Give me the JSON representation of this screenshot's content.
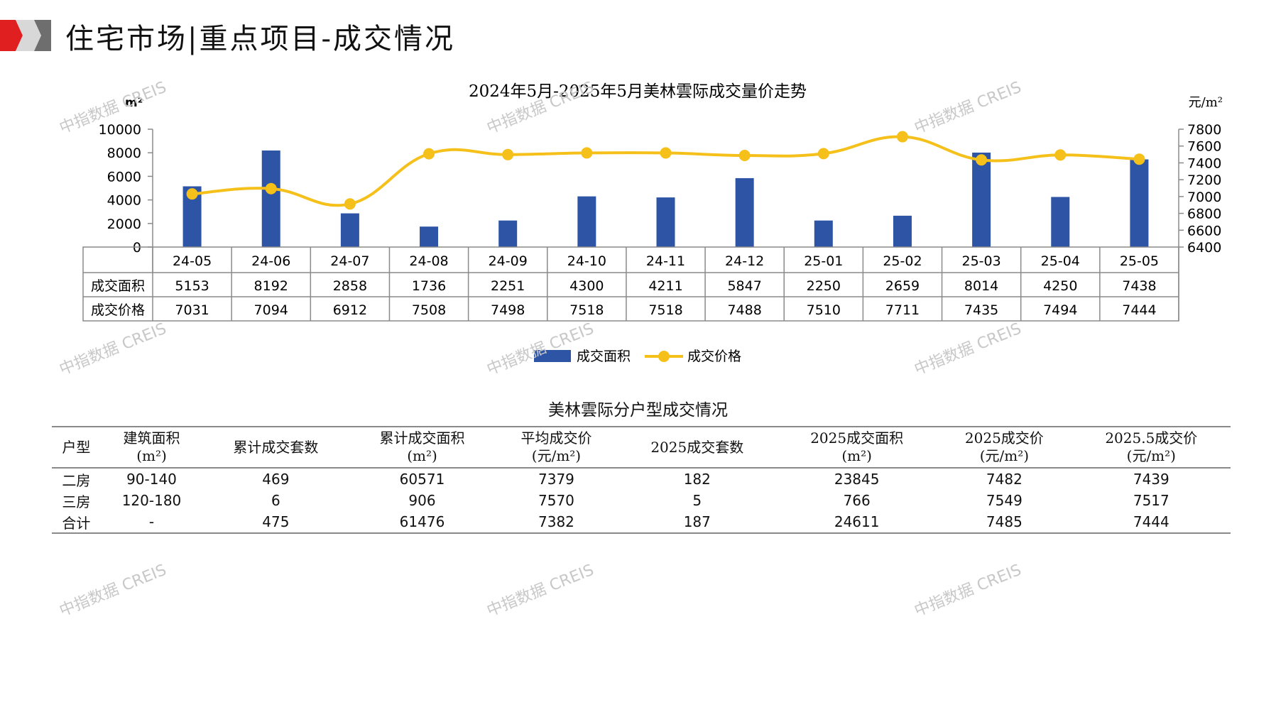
{
  "header": {
    "title": "住宅市场|重点项目-成交情况"
  },
  "watermark": "中指数据 CREIS",
  "chart_data": {
    "type": "bar",
    "title": "2024年5月-2025年5月美林雲际成交量价走势",
    "y_left_unit": "m²",
    "y_right_unit": "元/m²",
    "ylim_left": [
      0,
      10000
    ],
    "yticks_left": [
      0,
      2000,
      4000,
      6000,
      8000,
      10000
    ],
    "ylim_right": [
      6400,
      7800
    ],
    "yticks_right": [
      6400,
      6600,
      6800,
      7000,
      7200,
      7400,
      7600,
      7800
    ],
    "categories": [
      "24-05",
      "24-06",
      "24-07",
      "24-08",
      "24-09",
      "24-10",
      "24-11",
      "24-12",
      "25-01",
      "25-02",
      "25-03",
      "25-04",
      "25-05"
    ],
    "series": [
      {
        "name": "成交面积",
        "type": "bar",
        "axis": "left",
        "color": "#2e55a5",
        "values": [
          5153,
          8192,
          2858,
          1736,
          2251,
          4300,
          4211,
          5847,
          2250,
          2659,
          8014,
          4250,
          7438
        ]
      },
      {
        "name": "成交价格",
        "type": "line",
        "axis": "right",
        "color": "#f5c01a",
        "values": [
          7031,
          7094,
          6912,
          7508,
          7498,
          7518,
          7518,
          7488,
          7510,
          7711,
          7435,
          7494,
          7444
        ]
      }
    ],
    "legend": "bottom-center",
    "grid": false
  },
  "table2": {
    "title": "美林雲际分户型成交情况",
    "headers": [
      [
        "户型"
      ],
      [
        "建筑面积",
        "(m²)"
      ],
      [
        "累计成交套数"
      ],
      [
        "累计成交面积",
        "(m²)"
      ],
      [
        "平均成交价",
        "(元/m²)"
      ],
      [
        "2025成交套数"
      ],
      [
        "2025成交面积",
        "(m²)"
      ],
      [
        "2025成交价",
        "(元/m²)"
      ],
      [
        "2025.5成交价",
        "(元/m²)"
      ]
    ],
    "rows": [
      [
        "二房",
        "90-140",
        "469",
        "60571",
        "7379",
        "182",
        "23845",
        "7482",
        "7439"
      ],
      [
        "三房",
        "120-180",
        "6",
        "906",
        "7570",
        "5",
        "766",
        "7549",
        "7517"
      ],
      [
        "合计",
        "-",
        "475",
        "61476",
        "7382",
        "187",
        "24611",
        "7485",
        "7444"
      ]
    ]
  },
  "colors": {
    "bar": "#2e55a5",
    "line": "#f5c01a",
    "accent_red": "#e02020",
    "accent_gray": "#a0a0a0"
  }
}
